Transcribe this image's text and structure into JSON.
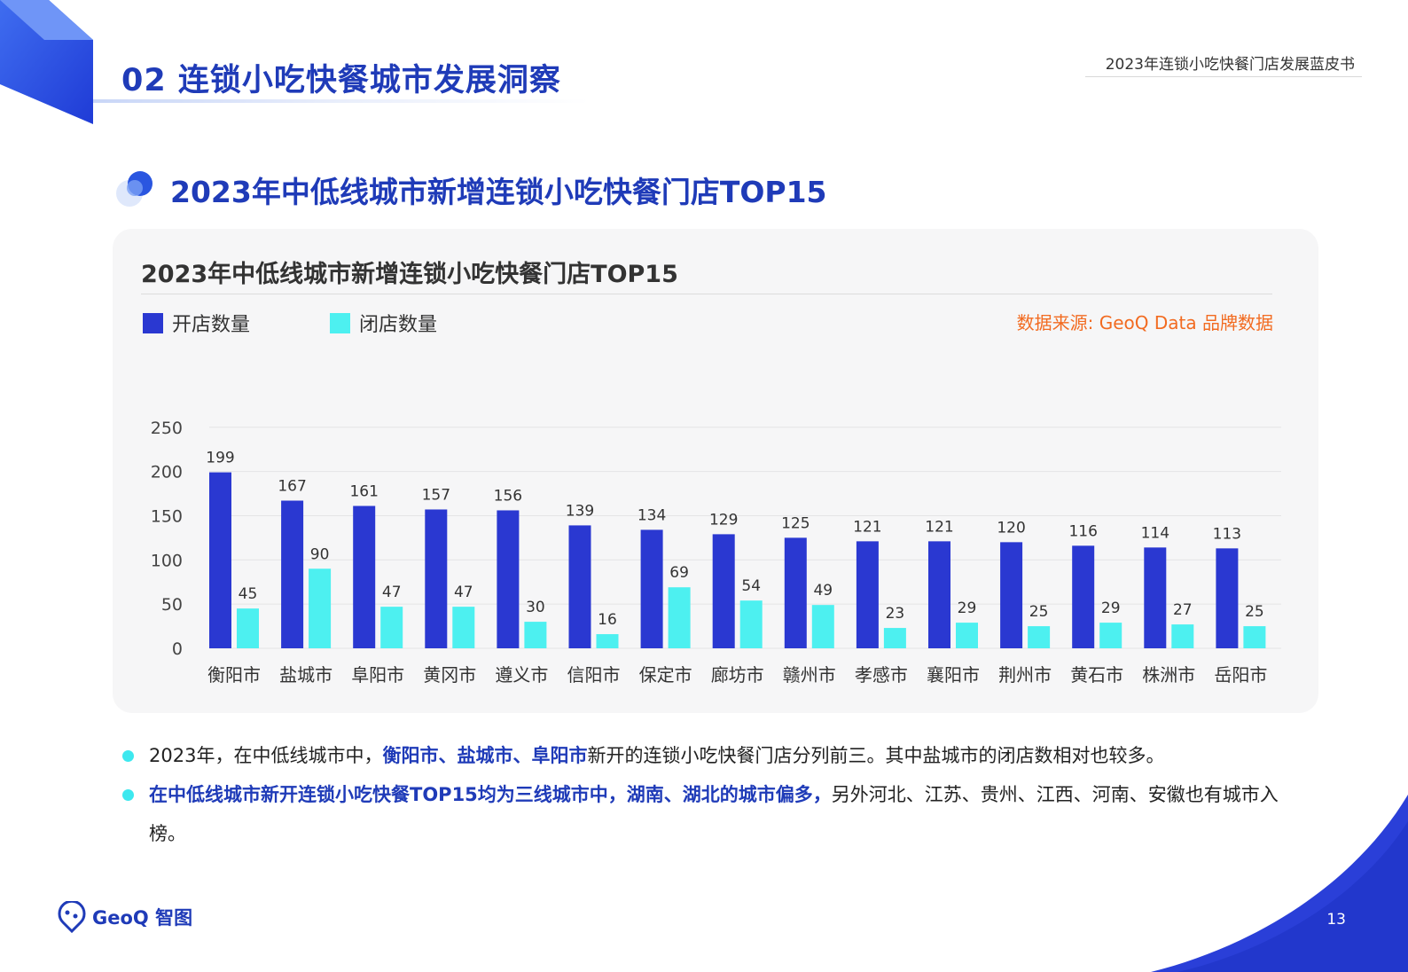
{
  "header": {
    "section_title": "02 连锁小吃快餐城市发展洞察",
    "report_title": "2023年连锁小吃快餐门店发展蓝皮书"
  },
  "subtitle": "2023年中低线城市新增连锁小吃快餐门店TOP15",
  "chart_meta": {
    "source": "数据来源: GeoQ Data 品牌数据",
    "colors": {
      "open": "#2a38d1",
      "close": "#4df0f0",
      "accent": "#1f3bb8",
      "source": "#f26b21"
    }
  },
  "chart_data": {
    "type": "bar",
    "title": "2023年中低线城市新增连锁小吃快餐门店TOP15",
    "categories": [
      "衡阳市",
      "盐城市",
      "阜阳市",
      "黄冈市",
      "遵义市",
      "信阳市",
      "保定市",
      "廊坊市",
      "赣州市",
      "孝感市",
      "襄阳市",
      "荆州市",
      "黄石市",
      "株洲市",
      "岳阳市"
    ],
    "series": [
      {
        "name": "开店数量",
        "values": [
          199,
          167,
          161,
          157,
          156,
          139,
          134,
          129,
          125,
          121,
          121,
          120,
          116,
          114,
          113
        ]
      },
      {
        "name": "闭店数量",
        "values": [
          45,
          90,
          47,
          47,
          30,
          16,
          69,
          54,
          49,
          23,
          29,
          25,
          29,
          27,
          25
        ]
      }
    ],
    "yticks": [
      "0",
      "50",
      "100",
      "150",
      "200",
      "250"
    ],
    "ylim": [
      0,
      250
    ],
    "xlabel": "",
    "ylabel": "",
    "grid": true,
    "legend": "top-left"
  },
  "bullets": [
    {
      "pre": "2023年，在中低线城市中，",
      "highlight": "衡阳市、盐城市、阜阳市",
      "post": "新开的连锁小吃快餐门店分列前三。其中盐城市的闭店数相对也较多。"
    },
    {
      "pre": "",
      "highlight": "在中低线城市新开连锁小吃快餐TOP15均为三线城市中，湖南、湖北的城市偏多，",
      "post": "另外河北、江苏、贵州、江西、河南、安徽也有城市入榜。"
    }
  ],
  "footer": {
    "logo_text": "GeoQ 智图",
    "page_number": "13"
  }
}
